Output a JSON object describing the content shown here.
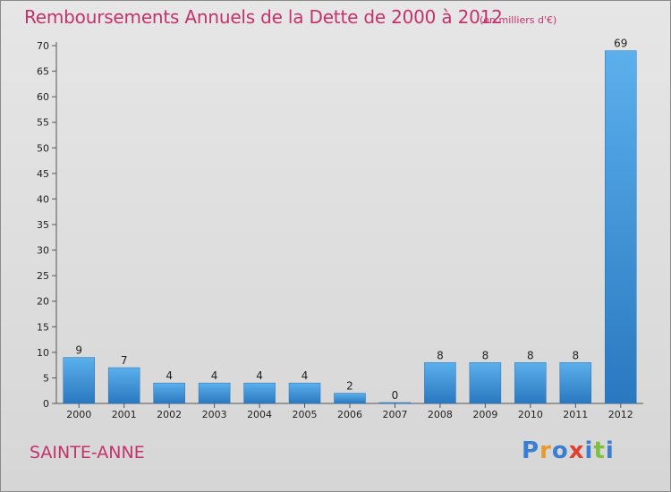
{
  "chart_data": {
    "type": "bar",
    "title": "Remboursements Annuels de la Dette de 2000 à 2012",
    "subtitle": "(en milliers d'€)",
    "categories": [
      "2000",
      "2001",
      "2002",
      "2003",
      "2004",
      "2005",
      "2006",
      "2007",
      "2008",
      "2009",
      "2010",
      "2011",
      "2012"
    ],
    "values": [
      9,
      7,
      4,
      4,
      4,
      4,
      2,
      0,
      8,
      8,
      8,
      8,
      69
    ],
    "ylim": [
      0,
      70
    ],
    "yticks": [
      0,
      5,
      10,
      15,
      20,
      25,
      30,
      35,
      40,
      45,
      50,
      55,
      60,
      65,
      70
    ],
    "grid": false,
    "bar_color": "#3f96d8"
  },
  "commune": "SAINTE-ANNE",
  "brand": {
    "letters": [
      "P",
      "r",
      "o",
      "x",
      "i",
      "t",
      "i"
    ],
    "colors": [
      "#3a7ed1",
      "#e69b2f",
      "#3a7ed1",
      "#e0402f",
      "#3a7ed1",
      "#7fbf3f",
      "#3a7ed1"
    ]
  }
}
